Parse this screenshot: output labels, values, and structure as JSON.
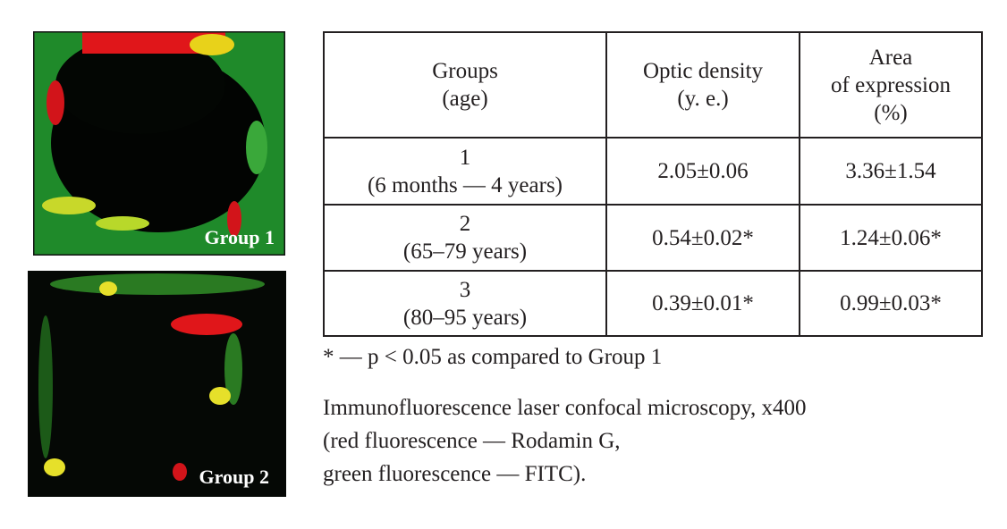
{
  "figures": [
    {
      "label": "Group 1"
    },
    {
      "label": "Group 2"
    }
  ],
  "table": {
    "header": [
      [
        "Groups",
        "(age)"
      ],
      [
        "Optic density",
        "(y. e.)"
      ],
      [
        "Area",
        "of expression",
        "(%)"
      ]
    ],
    "rows": [
      [
        [
          "1",
          "(6 months — 4 years)"
        ],
        "2.05±0.06",
        "3.36±1.54"
      ],
      [
        [
          "2",
          "(65–79 years)"
        ],
        "0.54±0.02*",
        "1.24±0.06*"
      ],
      [
        [
          "3",
          "(80–95 years)"
        ],
        "0.39±0.01*",
        "0.99±0.03*"
      ]
    ]
  },
  "footnote": "* — p < 0.05 as compared to Group 1",
  "caption": [
    "Immunofluorescence laser confocal microscopy, x400",
    "(red fluorescence — Rodamin G,",
    "green fluorescence — FITC)."
  ]
}
